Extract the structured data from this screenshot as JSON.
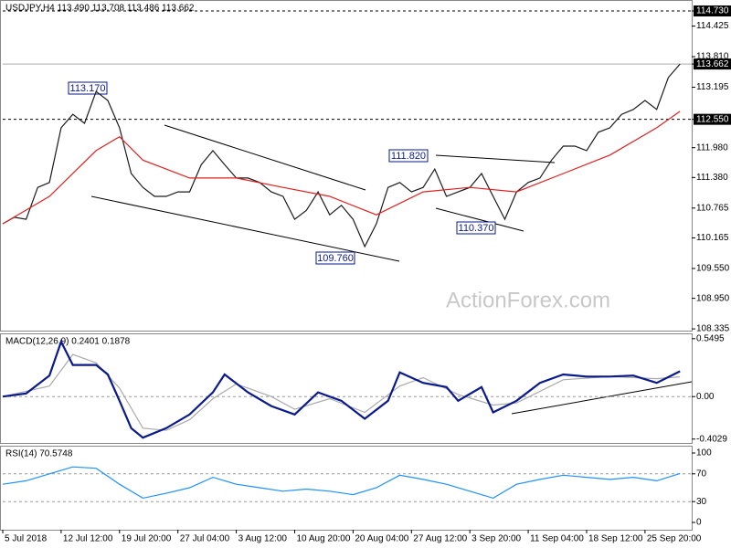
{
  "watermark": "ActionForex.com",
  "chart_data": [
    {
      "type": "line",
      "title": "USDJPY,H4 113.490 113.708 113.486 113.662",
      "xlim": [
        0,
        354
      ],
      "ylim": [
        108.3,
        114.95
      ],
      "yticks": [
        {
          "value": 114.73,
          "label": "114.730"
        },
        114.425,
        {
          "value": 113.81,
          "label": "113.810"
        },
        113.662,
        113.195,
        {
          "value": 112.55,
          "label": "112.550"
        },
        {
          "value": 111.98,
          "label": "111.980"
        },
        {
          "value": 111.38,
          "label": "111.380"
        },
        110.765,
        110.165,
        {
          "value": 109.55,
          "label": "109.550"
        },
        {
          "value": 108.95,
          "label": "108.950"
        },
        108.335
      ],
      "annotations": [
        {
          "value": 113.17,
          "label": "113.170"
        },
        {
          "value": 111.82,
          "label": "111.820"
        },
        {
          "value": 110.37,
          "label": "110.370"
        },
        {
          "value": 109.76,
          "label": "109.760"
        }
      ],
      "series": [
        {
          "color": "#1a1a1a",
          "x": [
            0,
            6,
            12,
            18,
            24,
            30,
            36,
            42,
            48,
            54,
            60,
            66,
            72,
            78,
            84,
            90,
            96,
            102,
            108,
            114,
            120,
            126,
            132,
            138,
            144,
            150,
            156,
            162,
            168,
            174,
            180,
            186,
            192,
            198,
            204,
            210,
            216,
            222,
            228,
            234,
            240,
            246,
            252,
            258,
            264,
            270,
            276,
            282,
            288,
            294,
            300,
            306,
            312,
            318,
            324,
            330,
            336,
            342,
            348
          ],
          "values": [
            110.45,
            110.58,
            110.54,
            111.18,
            111.28,
            112.38,
            112.65,
            112.47,
            113.11,
            112.93,
            112.38,
            111.46,
            111.18,
            111.0,
            111.0,
            111.09,
            111.09,
            111.64,
            111.92,
            111.64,
            111.37,
            111.37,
            111.28,
            111.09,
            111.0,
            110.54,
            110.72,
            111.09,
            110.63,
            110.82,
            110.54,
            109.99,
            110.45,
            111.18,
            111.28,
            111.09,
            111.18,
            111.55,
            111.0,
            111.09,
            111.18,
            111.46,
            111.0,
            110.54,
            111.09,
            111.28,
            111.37,
            111.73,
            112.01,
            112.01,
            111.92,
            112.29,
            112.38,
            112.65,
            112.75,
            112.93,
            112.75,
            113.39,
            113.662
          ]
        },
        {
          "color": "#e02020",
          "x": [
            0,
            24,
            48,
            60,
            72,
            96,
            120,
            144,
            168,
            192,
            216,
            240,
            264,
            288,
            312,
            336,
            348
          ],
          "values": [
            110.45,
            111.0,
            111.92,
            112.2,
            111.73,
            111.37,
            111.37,
            111.18,
            111.0,
            110.63,
            111.09,
            111.18,
            111.09,
            111.46,
            111.83,
            112.38,
            112.71
          ]
        }
      ]
    },
    {
      "type": "line",
      "title": "MACD(12,26,9) 0.2401 0.1878",
      "xlim": [
        0,
        354
      ],
      "ylim": [
        -0.44,
        0.6
      ],
      "yticks": [
        0.5495,
        {
          "value": 0,
          "label": "0.00"
        },
        -0.4029
      ],
      "series": [
        {
          "color": "#aaaaaa",
          "x": [
            0,
            24,
            36,
            48,
            60,
            72,
            84,
            96,
            108,
            120,
            138,
            150,
            168,
            186,
            204,
            216,
            234,
            252,
            264,
            288,
            312,
            336,
            348
          ],
          "values": [
            0.0,
            0.1,
            0.4,
            0.32,
            0.08,
            -0.3,
            -0.32,
            -0.22,
            -0.02,
            0.12,
            0.0,
            -0.12,
            -0.02,
            -0.15,
            0.1,
            0.18,
            0.02,
            -0.08,
            -0.06,
            0.16,
            0.19,
            0.17,
            0.1878
          ]
        },
        {
          "color": "#0a1a8c",
          "x": [
            0,
            12,
            24,
            30,
            36,
            48,
            54,
            60,
            66,
            72,
            84,
            96,
            108,
            114,
            126,
            138,
            150,
            162,
            174,
            186,
            198,
            204,
            216,
            228,
            234,
            246,
            252,
            264,
            276,
            288,
            300,
            312,
            324,
            336,
            348
          ],
          "values": [
            0.0,
            0.03,
            0.2,
            0.52,
            0.3,
            0.3,
            0.21,
            -0.04,
            -0.3,
            -0.39,
            -0.3,
            -0.17,
            0.04,
            0.21,
            0.04,
            -0.09,
            -0.17,
            0.04,
            -0.04,
            -0.21,
            -0.04,
            0.23,
            0.13,
            0.09,
            -0.04,
            0.09,
            -0.15,
            -0.04,
            0.13,
            0.21,
            0.19,
            0.19,
            0.2,
            0.13,
            0.2401
          ]
        }
      ]
    },
    {
      "type": "line",
      "title": "RSI(14) 70.5748",
      "xlim": [
        0,
        354
      ],
      "ylim": [
        -10.5,
        110.5
      ],
      "yticks": [
        100,
        70,
        30,
        0
      ],
      "xticks": [
        {
          "value": 0,
          "label": "5 Jul 2018"
        },
        {
          "value": 30,
          "label": "12 Jul 12:00"
        },
        {
          "value": 60,
          "label": "19 Jul 20:00"
        },
        {
          "value": 90,
          "label": "27 Jul 04:00"
        },
        {
          "value": 120,
          "label": "3 Aug 12:00"
        },
        {
          "value": 150,
          "label": "10 Aug 20:00"
        },
        {
          "value": 180,
          "label": "20 Aug 04:00"
        },
        {
          "value": 210,
          "label": "27 Aug 12:00"
        },
        {
          "value": 240,
          "label": "3 Sep 20:00"
        },
        {
          "value": 270,
          "label": "11 Sep 04:00"
        },
        {
          "value": 300,
          "label": "18 Sep 12:00"
        },
        {
          "value": 330,
          "label": "25 Sep 20:00"
        }
      ],
      "series": [
        {
          "color": "#1e90ff",
          "x": [
            0,
            12,
            24,
            36,
            48,
            60,
            72,
            84,
            96,
            108,
            120,
            132,
            144,
            156,
            168,
            180,
            192,
            204,
            216,
            228,
            240,
            252,
            264,
            276,
            288,
            300,
            312,
            324,
            336,
            348
          ],
          "values": [
            55,
            60,
            70,
            80,
            78,
            55,
            35,
            42,
            50,
            65,
            55,
            50,
            45,
            48,
            45,
            40,
            50,
            68,
            62,
            55,
            45,
            35,
            55,
            62,
            68,
            65,
            62,
            65,
            60,
            70.5748
          ]
        }
      ]
    }
  ]
}
